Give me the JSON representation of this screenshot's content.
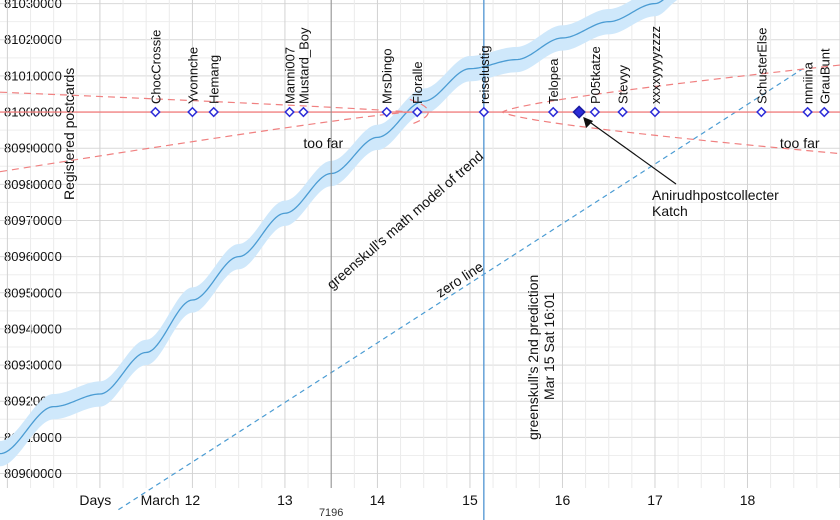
{
  "chart_data": {
    "type": "line",
    "y_axis": {
      "range": [
        80895000,
        81030000
      ],
      "ticks": [
        80900000,
        80910000,
        80920000,
        80930000,
        80940000,
        80950000,
        80960000,
        80970000,
        80980000,
        80990000,
        81000000,
        81010000,
        81020000,
        81030000
      ],
      "tick_labels": [
        "80900000",
        "80910000",
        "80920000",
        "80930000",
        "80940000",
        "80950000",
        "80960000",
        "80970000",
        "80980000",
        "80990000",
        "81000000",
        "81010000",
        "81020000",
        "81030000"
      ],
      "label": "Registered postcards"
    },
    "x_axis": {
      "units": "days (March)",
      "range": [
        9.92,
        19.0
      ],
      "tick_labels": [
        {
          "x": 10.95,
          "label": "Days"
        },
        {
          "x": 11.65,
          "label": "March"
        },
        {
          "x": 12.0,
          "label": "12"
        },
        {
          "x": 13.0,
          "label": "13"
        },
        {
          "x": 14.0,
          "label": "14"
        },
        {
          "x": 15.0,
          "label": "15"
        },
        {
          "x": 16.0,
          "label": "16"
        },
        {
          "x": 17.0,
          "label": "17"
        },
        {
          "x": 18.0,
          "label": "18"
        }
      ],
      "extra_label": {
        "x": 13.5,
        "label": "7196"
      }
    },
    "grid": true,
    "trend_model": {
      "name": "greenskull's math model of trend",
      "points": [
        [
          9.92,
          80905500
        ],
        [
          10.5,
          80918500
        ],
        [
          11.0,
          80922000
        ],
        [
          11.5,
          80933500
        ],
        [
          12.0,
          80948000
        ],
        [
          12.5,
          80960000
        ],
        [
          13.0,
          80972000
        ],
        [
          13.5,
          80983000
        ],
        [
          14.0,
          80993000
        ],
        [
          14.5,
          81003000
        ],
        [
          15.0,
          81012000
        ],
        [
          15.5,
          81014500
        ],
        [
          16.0,
          81020500
        ],
        [
          16.5,
          81025000
        ],
        [
          17.0,
          81030000
        ],
        [
          17.3,
          81035000
        ]
      ],
      "band_halfwidth": 3500,
      "color": "#4b9cd3",
      "band_color": "#cfe8fb"
    },
    "zero_line": {
      "label": "zero line",
      "from": [
        11.2,
        80890000
      ],
      "to": [
        18.6,
        81012000
      ],
      "color": "#4b9cd3"
    },
    "target_line": {
      "y": 81000000,
      "color": "#f08080"
    },
    "prediction": {
      "x": 15.15,
      "label_line1": "greenskull's 2nd prediction",
      "label_line2": "Mar 15 Sat 16:01"
    },
    "grey_marker_x": 13.5,
    "too_far_cones": [
      {
        "label": "too far",
        "label_x": 13.2,
        "label_y": 80995000
      },
      {
        "label": "too far",
        "label_x": 18.35,
        "label_y": 80995000
      }
    ],
    "predictions": [
      {
        "name": "ChocCrossie",
        "x": 11.6
      },
      {
        "name": "Yvonnche",
        "x": 12.0
      },
      {
        "name": "Hemang",
        "x": 12.23
      },
      {
        "name": "Manni007",
        "x": 13.05
      },
      {
        "name": "Mustard_Boy",
        "x": 13.2
      },
      {
        "name": "MrsDingo",
        "x": 14.1
      },
      {
        "name": "Floralle",
        "x": 14.43
      },
      {
        "name": "reiselustig",
        "x": 15.15
      },
      {
        "name": "Telopea",
        "x": 15.9
      },
      {
        "name": "P05tkatze",
        "x": 16.35
      },
      {
        "name": "Stevyy",
        "x": 16.65
      },
      {
        "name": "xxxxyyyyzzzz",
        "x": 17.0
      },
      {
        "name": "SchusterElse",
        "x": 18.15
      },
      {
        "name": "nnniina",
        "x": 18.65
      },
      {
        "name": "GrauBunt",
        "x": 18.83
      }
    ],
    "highlight": {
      "x": 16.18,
      "label_line1": "Anirudhpostcollecter",
      "label_line2": "Katch"
    }
  }
}
